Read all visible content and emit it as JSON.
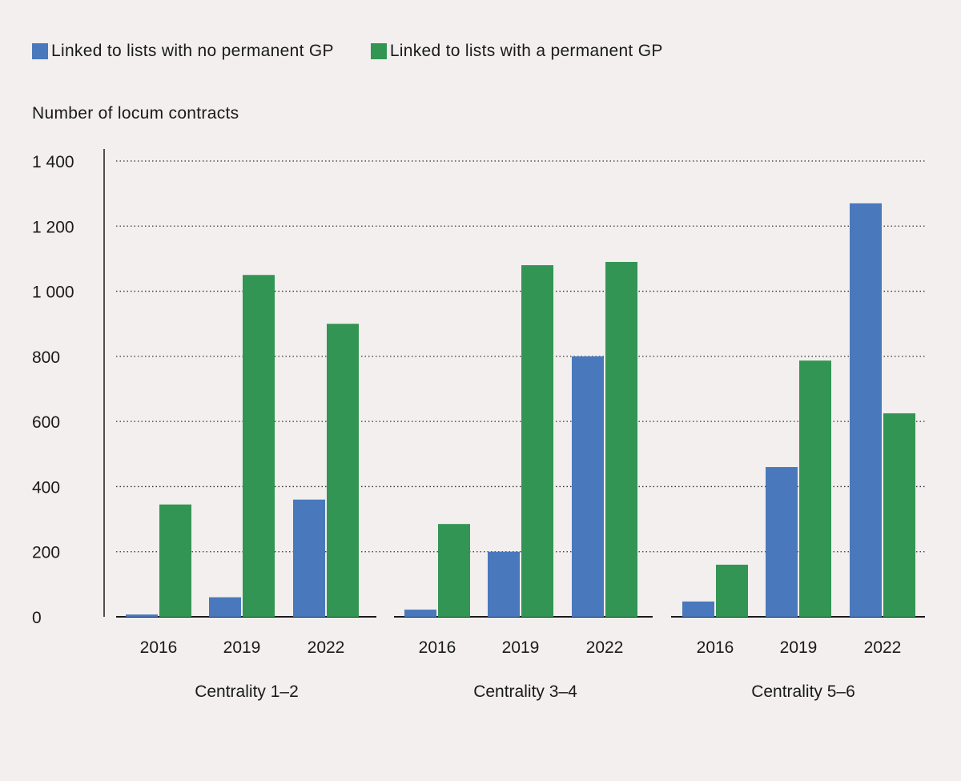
{
  "chart_data": {
    "type": "bar",
    "title": "",
    "ylabel": "Number of locum contracts",
    "xlabel": "",
    "ylim": [
      0,
      1400
    ],
    "yticks": [
      0,
      200,
      400,
      600,
      800,
      1000,
      1200,
      1400
    ],
    "ytick_labels": [
      "0",
      "200",
      "400",
      "600",
      "800",
      "1 000",
      "1 200",
      "1 400"
    ],
    "grid": "horizontal dotted",
    "legend_position": "top-left",
    "groups": [
      {
        "label": "Centrality 1–2",
        "categories": [
          "2016",
          "2019",
          "2022"
        ]
      },
      {
        "label": "Centrality 3–4",
        "categories": [
          "2016",
          "2019",
          "2022"
        ]
      },
      {
        "label": "Centrality 5–6",
        "categories": [
          "2016",
          "2019",
          "2022"
        ]
      }
    ],
    "series": [
      {
        "name": "Linked to lists with no permanent GP",
        "color": "#4a78bd",
        "values": [
          [
            7,
            60,
            360
          ],
          [
            22,
            200,
            800
          ],
          [
            47,
            460,
            1270
          ]
        ]
      },
      {
        "name": "Linked to lists with a permanent GP",
        "color": "#339554",
        "values": [
          [
            345,
            1050,
            900
          ],
          [
            285,
            1080,
            1090
          ],
          [
            160,
            787,
            625
          ]
        ]
      }
    ]
  }
}
